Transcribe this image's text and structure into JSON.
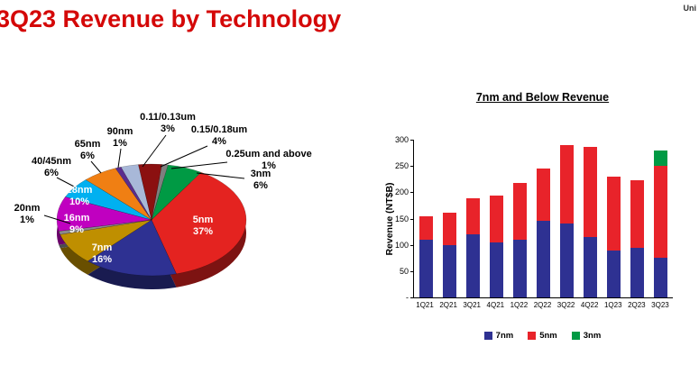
{
  "page": {
    "title": "3Q23 Revenue by Technology",
    "corner_text": "Uni"
  },
  "chart_data": [
    {
      "type": "pie",
      "title": "3Q23 Revenue by Technology",
      "start_angle": 10,
      "slices": [
        {
          "label": "3nm",
          "pct": 6,
          "pct_label": "6%",
          "color": "#009a44",
          "label_placement": "outside"
        },
        {
          "label": "5nm",
          "pct": 37,
          "pct_label": "37%",
          "color": "#e42320",
          "label_placement": "inside"
        },
        {
          "label": "7nm",
          "pct": 16,
          "pct_label": "16%",
          "color": "#2e3192",
          "label_placement": "inside"
        },
        {
          "label": "16nm",
          "pct": 9,
          "pct_label": "9%",
          "color": "#bf8f00",
          "label_placement": "inside"
        },
        {
          "label": "20nm",
          "pct": 1,
          "pct_label": "1%",
          "color": "#8a8a8a",
          "label_placement": "outside"
        },
        {
          "label": "28nm",
          "pct": 10,
          "pct_label": "10%",
          "color": "#c000c0",
          "label_placement": "inside"
        },
        {
          "label": "40/45nm",
          "pct": 6,
          "pct_label": "6%",
          "color": "#00b0f0",
          "label_placement": "outside"
        },
        {
          "label": "65nm",
          "pct": 6,
          "pct_label": "6%",
          "color": "#f07f13",
          "label_placement": "outside"
        },
        {
          "label": "90nm",
          "pct": 1,
          "pct_label": "1%",
          "color": "#5b2d8e",
          "label_placement": "outside"
        },
        {
          "label": "0.11/0.13um",
          "pct": 3,
          "pct_label": "3%",
          "color": "#a8b8d8",
          "label_placement": "outside"
        },
        {
          "label": "0.15/0.18um",
          "pct": 4,
          "pct_label": "4%",
          "color": "#8b1010",
          "label_placement": "outside"
        },
        {
          "label": "0.25um and above",
          "pct": 1,
          "pct_label": "1%",
          "color": "#7f7f7f",
          "label_placement": "outside"
        }
      ]
    },
    {
      "type": "bar",
      "stacked": true,
      "title": "7nm and Below Revenue",
      "ylabel": "Revenue (NT$B)",
      "ymax": 300,
      "ytick_labels": [
        "300",
        "250",
        "200",
        "150",
        "100",
        "50",
        "-"
      ],
      "grid": false,
      "legend_position": "bottom",
      "categories": [
        "1Q21",
        "2Q21",
        "3Q21",
        "4Q21",
        "1Q22",
        "2Q22",
        "3Q22",
        "4Q22",
        "1Q23",
        "2Q23",
        "3Q23"
      ],
      "series": [
        {
          "name": "7nm",
          "color": "#2e3192",
          "values": [
            110,
            100,
            120,
            105,
            110,
            145,
            140,
            115,
            90,
            95,
            75
          ]
        },
        {
          "name": "5nm",
          "color": "#e8232a",
          "values": [
            45,
            62,
            68,
            88,
            108,
            100,
            150,
            172,
            140,
            128,
            175
          ]
        },
        {
          "name": "3nm",
          "color": "#009a44",
          "values": [
            0,
            0,
            0,
            0,
            0,
            0,
            0,
            0,
            0,
            0,
            30
          ]
        }
      ]
    }
  ]
}
